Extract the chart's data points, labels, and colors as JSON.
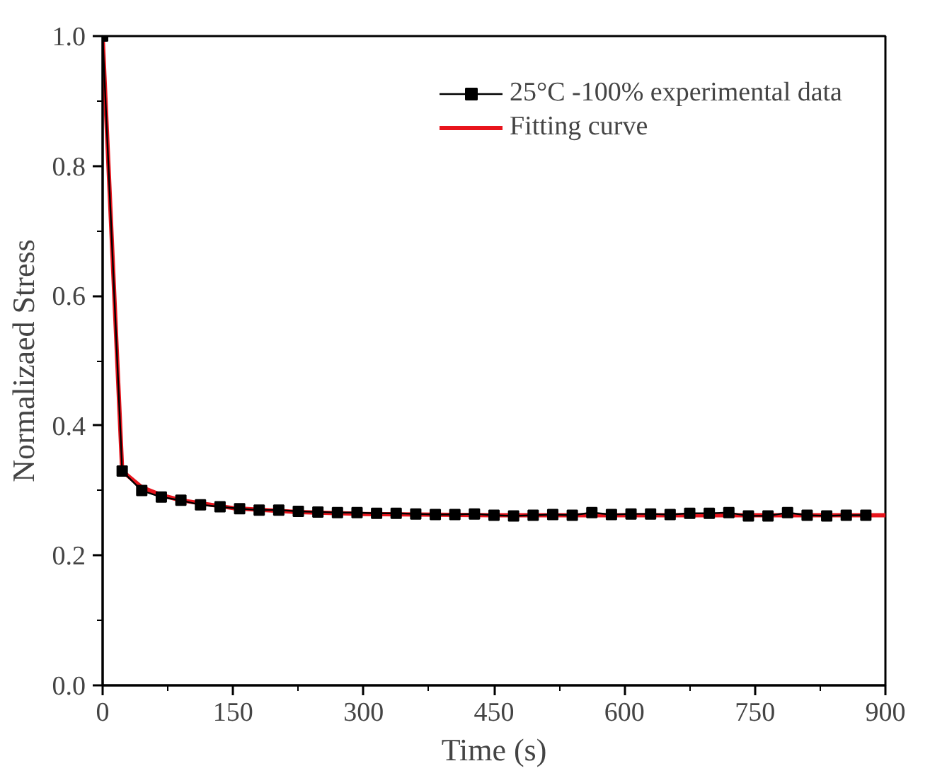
{
  "chart_data": {
    "type": "line",
    "xlabel": "Time (s)",
    "ylabel": "Normalizaed Stress",
    "xlim": [
      0,
      900
    ],
    "ylim": [
      0,
      1.0
    ],
    "xticks": [
      0,
      150,
      300,
      450,
      600,
      750,
      900
    ],
    "yticks": [
      {
        "value": 0,
        "label": "0.0"
      },
      0.2,
      0.4,
      0.6,
      0.8,
      {
        "value": 1,
        "label": "1.0"
      }
    ],
    "grid": false,
    "legend": "top right",
    "series": [
      {
        "name": "25°C -100% experimental data",
        "color": "#000000",
        "marker": "square",
        "x": [
          0,
          22.5,
          45,
          67.5,
          90,
          112.5,
          135,
          157.5,
          180,
          202.5,
          225,
          247.5,
          270,
          292.5,
          315,
          337.5,
          360,
          382.5,
          405,
          427.5,
          450,
          472.5,
          495,
          517.5,
          540,
          562.5,
          585,
          607.5,
          630,
          652.5,
          675,
          697.5,
          720,
          742.5,
          765,
          787.5,
          810,
          832.5,
          855,
          877.5
        ],
        "values": [
          1.0,
          0.33,
          0.3,
          0.29,
          0.285,
          0.278,
          0.275,
          0.272,
          0.27,
          0.27,
          0.268,
          0.267,
          0.266,
          0.266,
          0.265,
          0.265,
          0.264,
          0.263,
          0.263,
          0.264,
          0.262,
          0.261,
          0.262,
          0.263,
          0.262,
          0.266,
          0.263,
          0.264,
          0.264,
          0.263,
          0.265,
          0.265,
          0.266,
          0.261,
          0.261,
          0.266,
          0.262,
          0.261,
          0.262,
          0.262
        ]
      },
      {
        "name": "Fitting curve",
        "color": "#e8141c",
        "x": [
          0,
          22.5,
          45,
          67.5,
          90,
          150,
          225,
          300,
          450,
          600,
          900
        ],
        "values": [
          1.0,
          0.33,
          0.305,
          0.293,
          0.285,
          0.273,
          0.267,
          0.264,
          0.262,
          0.262,
          0.262
        ]
      }
    ]
  }
}
